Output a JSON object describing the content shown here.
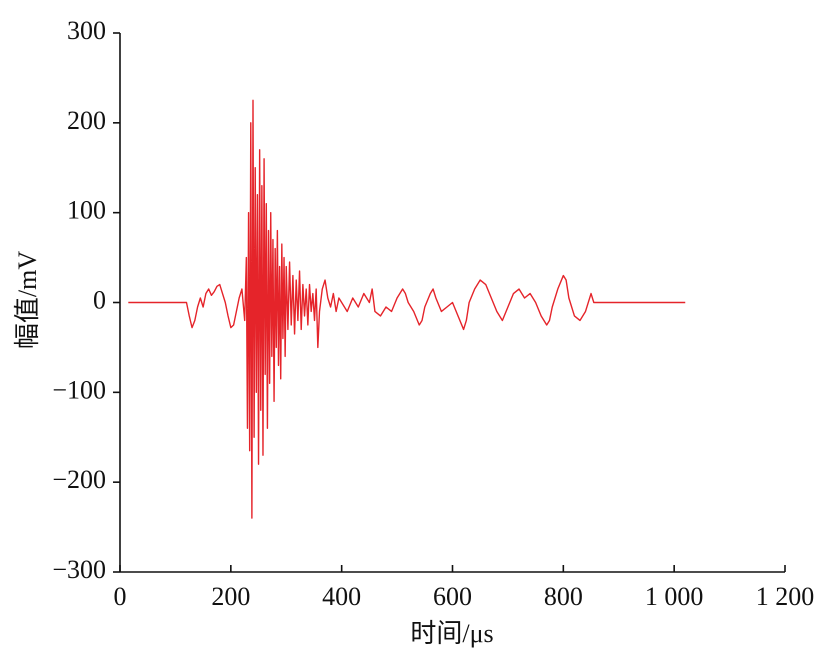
{
  "chart_data": {
    "type": "line",
    "xlabel": "时间/μs",
    "ylabel": "幅值/mV",
    "color": "#e5242a",
    "xlim": [
      0,
      1200
    ],
    "ylim": [
      -300,
      300
    ],
    "xticks": [
      0,
      200,
      400,
      600,
      800,
      {
        "value": 1000,
        "label": "1 000"
      },
      {
        "value": 1200,
        "label": "1 200"
      }
    ],
    "yticks": [
      {
        "value": -300,
        "label": "−300"
      },
      {
        "value": -200,
        "label": "−200"
      },
      {
        "value": -100,
        "label": "−100"
      },
      0,
      100,
      200,
      300
    ],
    "x": [
      15,
      120,
      125,
      130,
      135,
      140,
      145,
      150,
      155,
      160,
      165,
      170,
      175,
      180,
      185,
      190,
      195,
      200,
      205,
      210,
      215,
      220,
      225,
      228,
      230,
      232,
      234,
      236,
      238,
      240,
      242,
      244,
      246,
      248,
      250,
      252,
      254,
      256,
      258,
      260,
      262,
      264,
      266,
      268,
      270,
      272,
      274,
      276,
      278,
      280,
      282,
      284,
      286,
      288,
      290,
      292,
      294,
      296,
      298,
      300,
      303,
      306,
      309,
      312,
      315,
      318,
      321,
      324,
      327,
      330,
      333,
      336,
      339,
      342,
      345,
      348,
      351,
      354,
      357,
      360,
      365,
      370,
      375,
      380,
      385,
      390,
      395,
      400,
      410,
      420,
      430,
      440,
      450,
      455,
      460,
      470,
      480,
      490,
      500,
      510,
      515,
      520,
      530,
      540,
      545,
      550,
      560,
      565,
      570,
      580,
      590,
      600,
      610,
      620,
      625,
      630,
      640,
      650,
      660,
      670,
      680,
      690,
      700,
      710,
      720,
      730,
      740,
      750,
      760,
      770,
      775,
      780,
      790,
      800,
      805,
      810,
      820,
      830,
      840,
      850,
      855,
      900,
      1020
    ],
    "values": [
      0,
      0,
      -15,
      -28,
      -20,
      -5,
      5,
      -5,
      10,
      15,
      8,
      12,
      18,
      20,
      10,
      0,
      -15,
      -28,
      -25,
      -10,
      5,
      15,
      -20,
      50,
      -140,
      100,
      -165,
      200,
      -240,
      225,
      -150,
      150,
      -100,
      120,
      -180,
      170,
      -120,
      130,
      -170,
      160,
      -80,
      110,
      -140,
      80,
      -90,
      100,
      -60,
      70,
      -110,
      60,
      -50,
      80,
      -70,
      40,
      -85,
      65,
      -40,
      50,
      -60,
      40,
      -30,
      45,
      -25,
      30,
      -35,
      25,
      -20,
      35,
      -30,
      20,
      -15,
      15,
      -25,
      20,
      -10,
      10,
      -20,
      15,
      -50,
      -10,
      15,
      25,
      5,
      -5,
      10,
      -10,
      5,
      0,
      -10,
      5,
      -5,
      10,
      0,
      15,
      -10,
      -15,
      -5,
      -10,
      5,
      15,
      10,
      0,
      -10,
      -25,
      -20,
      -5,
      10,
      15,
      5,
      -10,
      -5,
      0,
      -15,
      -30,
      -20,
      0,
      15,
      25,
      20,
      5,
      -10,
      -20,
      -5,
      10,
      15,
      5,
      10,
      0,
      -15,
      -25,
      -20,
      -5,
      15,
      30,
      25,
      5,
      -15,
      -20,
      -10,
      10,
      0,
      0,
      0
    ]
  }
}
